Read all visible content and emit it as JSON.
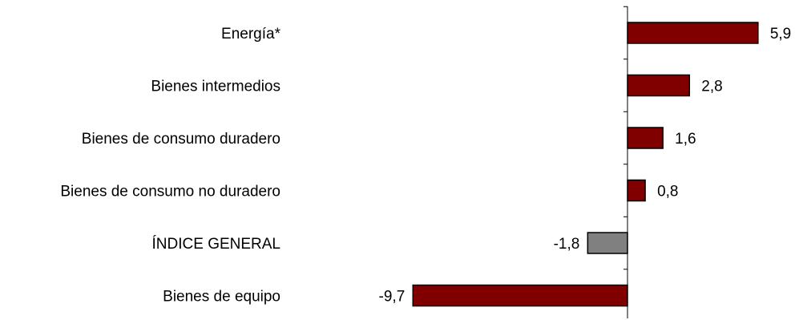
{
  "chart_data": {
    "type": "bar",
    "orientation": "horizontal",
    "categories": [
      "Energía*",
      "Bienes intermedios",
      "Bienes de consumo duradero",
      "Bienes de consumo no duradero",
      "ÍNDICE GENERAL",
      "Bienes de equipo"
    ],
    "values": [
      5.9,
      2.8,
      1.6,
      0.8,
      -1.8,
      -9.7
    ],
    "value_labels": [
      "5,9",
      "2,8",
      "1,6",
      "0,8",
      "-1,8",
      "-9,7"
    ],
    "bar_colors": [
      "#800000",
      "#800000",
      "#800000",
      "#800000",
      "#808080",
      "#800000"
    ],
    "title": "",
    "xlabel": "",
    "ylabel": "",
    "grid": false,
    "legend": "none"
  }
}
